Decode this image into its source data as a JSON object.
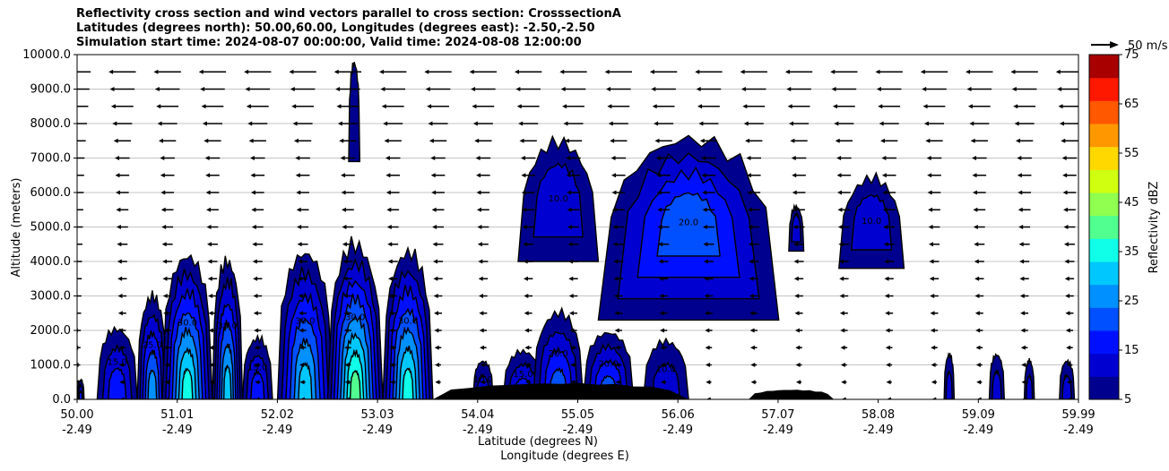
{
  "titles": {
    "line1": "Reflectivity cross section and wind vectors parallel to cross section: CrosssectionA",
    "line2": "Latitudes (degrees north): 50.00,60.00, Longitudes (degrees east): -2.50,-2.50",
    "line3": "Simulation start time: 2024-08-07 00:00:00, Valid time: 2024-08-08 12:00:00"
  },
  "chart_data": {
    "type": "heatmap",
    "subtype": "filled-contour cross section with wind vectors",
    "title": "Reflectivity cross section and wind vectors parallel to cross section: CrosssectionA",
    "ylabel": "Altitude (meters)",
    "xlabel_lat": "Latitude (degrees N)",
    "xlabel_lon": "Longitude (degrees E)",
    "ylim": [
      0,
      10000
    ],
    "xlim": [
      50.0,
      59.99
    ],
    "y_ticks": [
      "0.0",
      "1000.0",
      "2000.0",
      "3000.0",
      "4000.0",
      "5000.0",
      "6000.0",
      "7000.0",
      "8000.0",
      "9000.0",
      "10000.0"
    ],
    "x_ticks_lat": [
      "50.00",
      "51.01",
      "52.02",
      "53.03",
      "54.04",
      "55.05",
      "56.06",
      "57.07",
      "58.08",
      "59.09",
      "59.99"
    ],
    "x_ticks_lon": [
      "-2.49",
      "-2.49",
      "-2.49",
      "-2.49",
      "-2.49",
      "-2.49",
      "-2.49",
      "-2.49",
      "-2.49",
      "-2.49",
      "-2.49"
    ],
    "grid": "horizontal",
    "colorbar": {
      "label": "Reflectivity dBZ",
      "ticks": [
        "5",
        "15",
        "25",
        "35",
        "45",
        "55",
        "65",
        "75"
      ],
      "colors": [
        "#00008f",
        "#0000d0",
        "#0010ff",
        "#0050ff",
        "#0090ff",
        "#00c8ff",
        "#10ffe8",
        "#50ff90",
        "#90ff50",
        "#d0ff10",
        "#ffd800",
        "#ff9800",
        "#ff5800",
        "#ff1800",
        "#a80000"
      ]
    },
    "wind_key": "50 m/s",
    "contour_labels": [
      "5.0",
      "10.0",
      "15.0",
      "20.0",
      "25.0",
      "30.0"
    ],
    "cells": [
      {
        "x0": 50.0,
        "x1": 50.07,
        "top": 600,
        "peak": 15
      },
      {
        "x0": 50.2,
        "x1": 50.6,
        "top": 2200,
        "peak": 15
      },
      {
        "x0": 50.6,
        "x1": 50.9,
        "top": 3200,
        "peak": 25
      },
      {
        "x0": 50.85,
        "x1": 51.35,
        "top": 4500,
        "peak": 38
      },
      {
        "x0": 51.35,
        "x1": 51.65,
        "top": 4300,
        "peak": 30
      },
      {
        "x0": 51.65,
        "x1": 51.95,
        "top": 1900,
        "peak": 15
      },
      {
        "x0": 52.0,
        "x1": 52.55,
        "top": 4600,
        "peak": 33
      },
      {
        "x0": 52.5,
        "x1": 53.05,
        "top": 4800,
        "peak": 40
      },
      {
        "x0": 53.05,
        "x1": 53.55,
        "top": 4600,
        "peak": 35
      },
      {
        "x0": 52.71,
        "x1": 52.82,
        "top": 10000,
        "bottom": 6900,
        "peak": 5
      },
      {
        "x0": 54.4,
        "x1": 55.2,
        "top": 7700,
        "bottom": 4000,
        "peak": 12
      },
      {
        "x0": 55.2,
        "x1": 57.0,
        "top": 8000,
        "bottom": 2300,
        "peak": 22
      },
      {
        "x0": 57.1,
        "x1": 57.25,
        "top": 5700,
        "bottom": 4300,
        "peak": 10
      },
      {
        "x0": 57.6,
        "x1": 58.25,
        "top": 6600,
        "bottom": 3800,
        "peak": 10
      },
      {
        "x0": 53.95,
        "x1": 54.15,
        "top": 1200,
        "peak": 12
      },
      {
        "x0": 54.25,
        "x1": 54.65,
        "top": 1500,
        "peak": 15
      },
      {
        "x0": 54.55,
        "x1": 55.05,
        "top": 2700,
        "peak": 22
      },
      {
        "x0": 55.05,
        "x1": 55.55,
        "top": 2100,
        "peak": 22
      },
      {
        "x0": 55.65,
        "x1": 56.1,
        "top": 1800,
        "peak": 12
      },
      {
        "x0": 58.65,
        "x1": 58.75,
        "top": 1400,
        "peak": 10
      },
      {
        "x0": 59.1,
        "x1": 59.25,
        "top": 1400,
        "peak": 10
      },
      {
        "x0": 59.45,
        "x1": 59.55,
        "top": 1200,
        "peak": 10
      },
      {
        "x0": 59.8,
        "x1": 59.95,
        "top": 1200,
        "peak": 12
      }
    ],
    "terrain": [
      {
        "x0": 53.55,
        "x1": 56.1,
        "top": 500
      },
      {
        "x0": 56.7,
        "x1": 57.55,
        "top": 300
      }
    ],
    "wind_vectors": {
      "rows_m": [
        0,
        500,
        1000,
        1500,
        2000,
        2500,
        3000,
        3500,
        4000,
        4500,
        5000,
        5500,
        6000,
        6500,
        7000,
        7500,
        8000,
        8500,
        9000,
        9500
      ],
      "cols_lat": [
        50.0,
        50.45,
        50.9,
        51.35,
        51.8,
        52.25,
        52.7,
        53.15,
        53.6,
        54.05,
        54.5,
        54.95,
        55.4,
        55.85,
        56.3,
        56.75,
        57.2,
        57.65,
        58.1,
        58.55,
        59.0,
        59.45,
        59.9
      ],
      "direction": "southward",
      "speed_profile_ms": {
        "surface": 4,
        "4000m": 8,
        "7000m": 12,
        "9500m": 22
      }
    }
  }
}
